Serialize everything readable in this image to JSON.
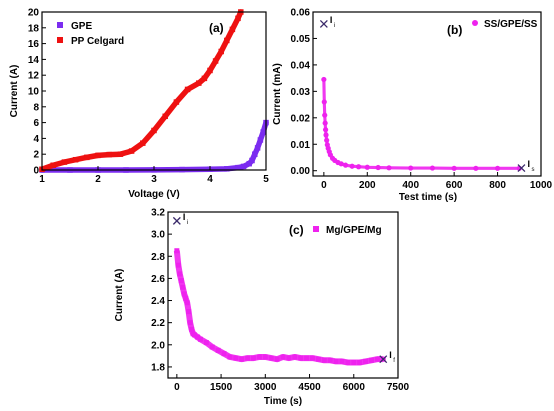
{
  "chart_data": [
    {
      "panel_label": "(a)",
      "type": "scatter",
      "xlabel": "Voltage (V)",
      "ylabel": "Current (A)",
      "xlim": [
        1,
        5
      ],
      "ylim": [
        0,
        20
      ],
      "xticks": [
        "1",
        "2",
        "3",
        "4",
        "5"
      ],
      "yticks": [
        "0",
        "2",
        "4",
        "6",
        "8",
        "10",
        "12",
        "14",
        "16",
        "18",
        "20"
      ],
      "legend_position": "top-left",
      "series": [
        {
          "name": "GPE",
          "color": "#7b2cf0",
          "x": [
            1.0,
            1.5,
            2.0,
            2.5,
            3.0,
            3.5,
            4.0,
            4.3,
            4.5,
            4.6,
            4.7,
            4.75,
            4.8,
            4.85,
            4.9,
            4.95,
            5.0
          ],
          "y": [
            0,
            0,
            0,
            0,
            0.02,
            0.05,
            0.1,
            0.15,
            0.3,
            0.45,
            0.8,
            1.2,
            2.0,
            2.8,
            3.8,
            4.8,
            6.0
          ]
        },
        {
          "name": "PP Celgard",
          "color": "#ee1111",
          "x": [
            1.0,
            1.2,
            1.4,
            1.6,
            1.8,
            2.0,
            2.2,
            2.4,
            2.6,
            2.8,
            3.0,
            3.2,
            3.4,
            3.6,
            3.8,
            3.9,
            4.0,
            4.1,
            4.2,
            4.3,
            4.4,
            4.5,
            4.55
          ],
          "y": [
            0.1,
            0.6,
            1.0,
            1.3,
            1.6,
            1.85,
            1.95,
            2.0,
            2.4,
            3.4,
            5.0,
            6.8,
            8.6,
            10.2,
            11.0,
            11.6,
            12.6,
            13.8,
            15.0,
            16.4,
            17.8,
            19.2,
            20.0
          ]
        }
      ]
    },
    {
      "panel_label": "(b)",
      "type": "scatter",
      "xlabel": "Test time (s)",
      "ylabel": "Current (mA)",
      "xlim": [
        -50,
        1000
      ],
      "ylim": [
        -0.002,
        0.06
      ],
      "xticks": [
        "0",
        "200",
        "400",
        "600",
        "800",
        "1000"
      ],
      "yticks": [
        "0.00",
        "0.01",
        "0.02",
        "0.03",
        "0.04",
        "0.05",
        "0.06"
      ],
      "legend_position": "top-right",
      "series": [
        {
          "name": "SS/GPE/SS",
          "color": "#ee22ee",
          "x": [
            0,
            2,
            4,
            6,
            8,
            10,
            13,
            16,
            20,
            25,
            30,
            40,
            50,
            65,
            80,
            100,
            130,
            160,
            200,
            250,
            300,
            400,
            500,
            600,
            700,
            800,
            900
          ],
          "y": [
            0.0345,
            0.026,
            0.021,
            0.018,
            0.0155,
            0.0135,
            0.0115,
            0.0098,
            0.0085,
            0.0072,
            0.006,
            0.0047,
            0.0039,
            0.0031,
            0.0026,
            0.0021,
            0.0017,
            0.0015,
            0.0013,
            0.0012,
            0.0011,
            0.001,
            0.001,
            0.0009,
            0.0009,
            0.0009,
            0.0009
          ]
        }
      ],
      "annotations": [
        {
          "label": "I",
          "subscript": "i",
          "x": 0,
          "y": 0.0555
        },
        {
          "label": "I",
          "subscript": "s",
          "x": 910,
          "y": 0.001
        }
      ]
    },
    {
      "panel_label": "(c)",
      "type": "scatter",
      "xlabel": "Time (s)",
      "ylabel": "Current (A)",
      "xlim": [
        -300,
        7500
      ],
      "ylim": [
        1.7,
        3.2
      ],
      "xticks": [
        "0",
        "1500",
        "3000",
        "4500",
        "6000",
        "7500"
      ],
      "yticks": [
        "1.8",
        "2.0",
        "2.2",
        "2.4",
        "2.6",
        "2.8",
        "3.0",
        "3.2"
      ],
      "legend_position": "top-center",
      "series": [
        {
          "name": "Mg/GPE/Mg",
          "color": "#ee22ee",
          "x": [
            0,
            50,
            100,
            150,
            200,
            250,
            300,
            350,
            400,
            450,
            500,
            550,
            600,
            700,
            800,
            1000,
            1200,
            1400,
            1600,
            1800,
            2000,
            2200,
            2400,
            2600,
            2800,
            3000,
            3200,
            3400,
            3600,
            3800,
            4000,
            4200,
            4400,
            4600,
            4800,
            5000,
            5200,
            5400,
            5600,
            5800,
            6000,
            6200,
            6400,
            6600,
            6800,
            7000
          ],
          "y": [
            2.85,
            2.72,
            2.64,
            2.58,
            2.52,
            2.46,
            2.42,
            2.38,
            2.3,
            2.2,
            2.14,
            2.1,
            2.09,
            2.07,
            2.05,
            2.02,
            1.98,
            1.95,
            1.92,
            1.89,
            1.88,
            1.87,
            1.88,
            1.88,
            1.89,
            1.89,
            1.88,
            1.87,
            1.89,
            1.88,
            1.89,
            1.88,
            1.88,
            1.88,
            1.87,
            1.86,
            1.86,
            1.85,
            1.85,
            1.84,
            1.84,
            1.84,
            1.85,
            1.86,
            1.87,
            1.87
          ]
        }
      ],
      "annotations": [
        {
          "label": "I",
          "subscript": "i",
          "x": 0,
          "y": 3.12
        },
        {
          "label": "I",
          "subscript": "f",
          "x": 7000,
          "y": 1.87
        }
      ]
    }
  ]
}
